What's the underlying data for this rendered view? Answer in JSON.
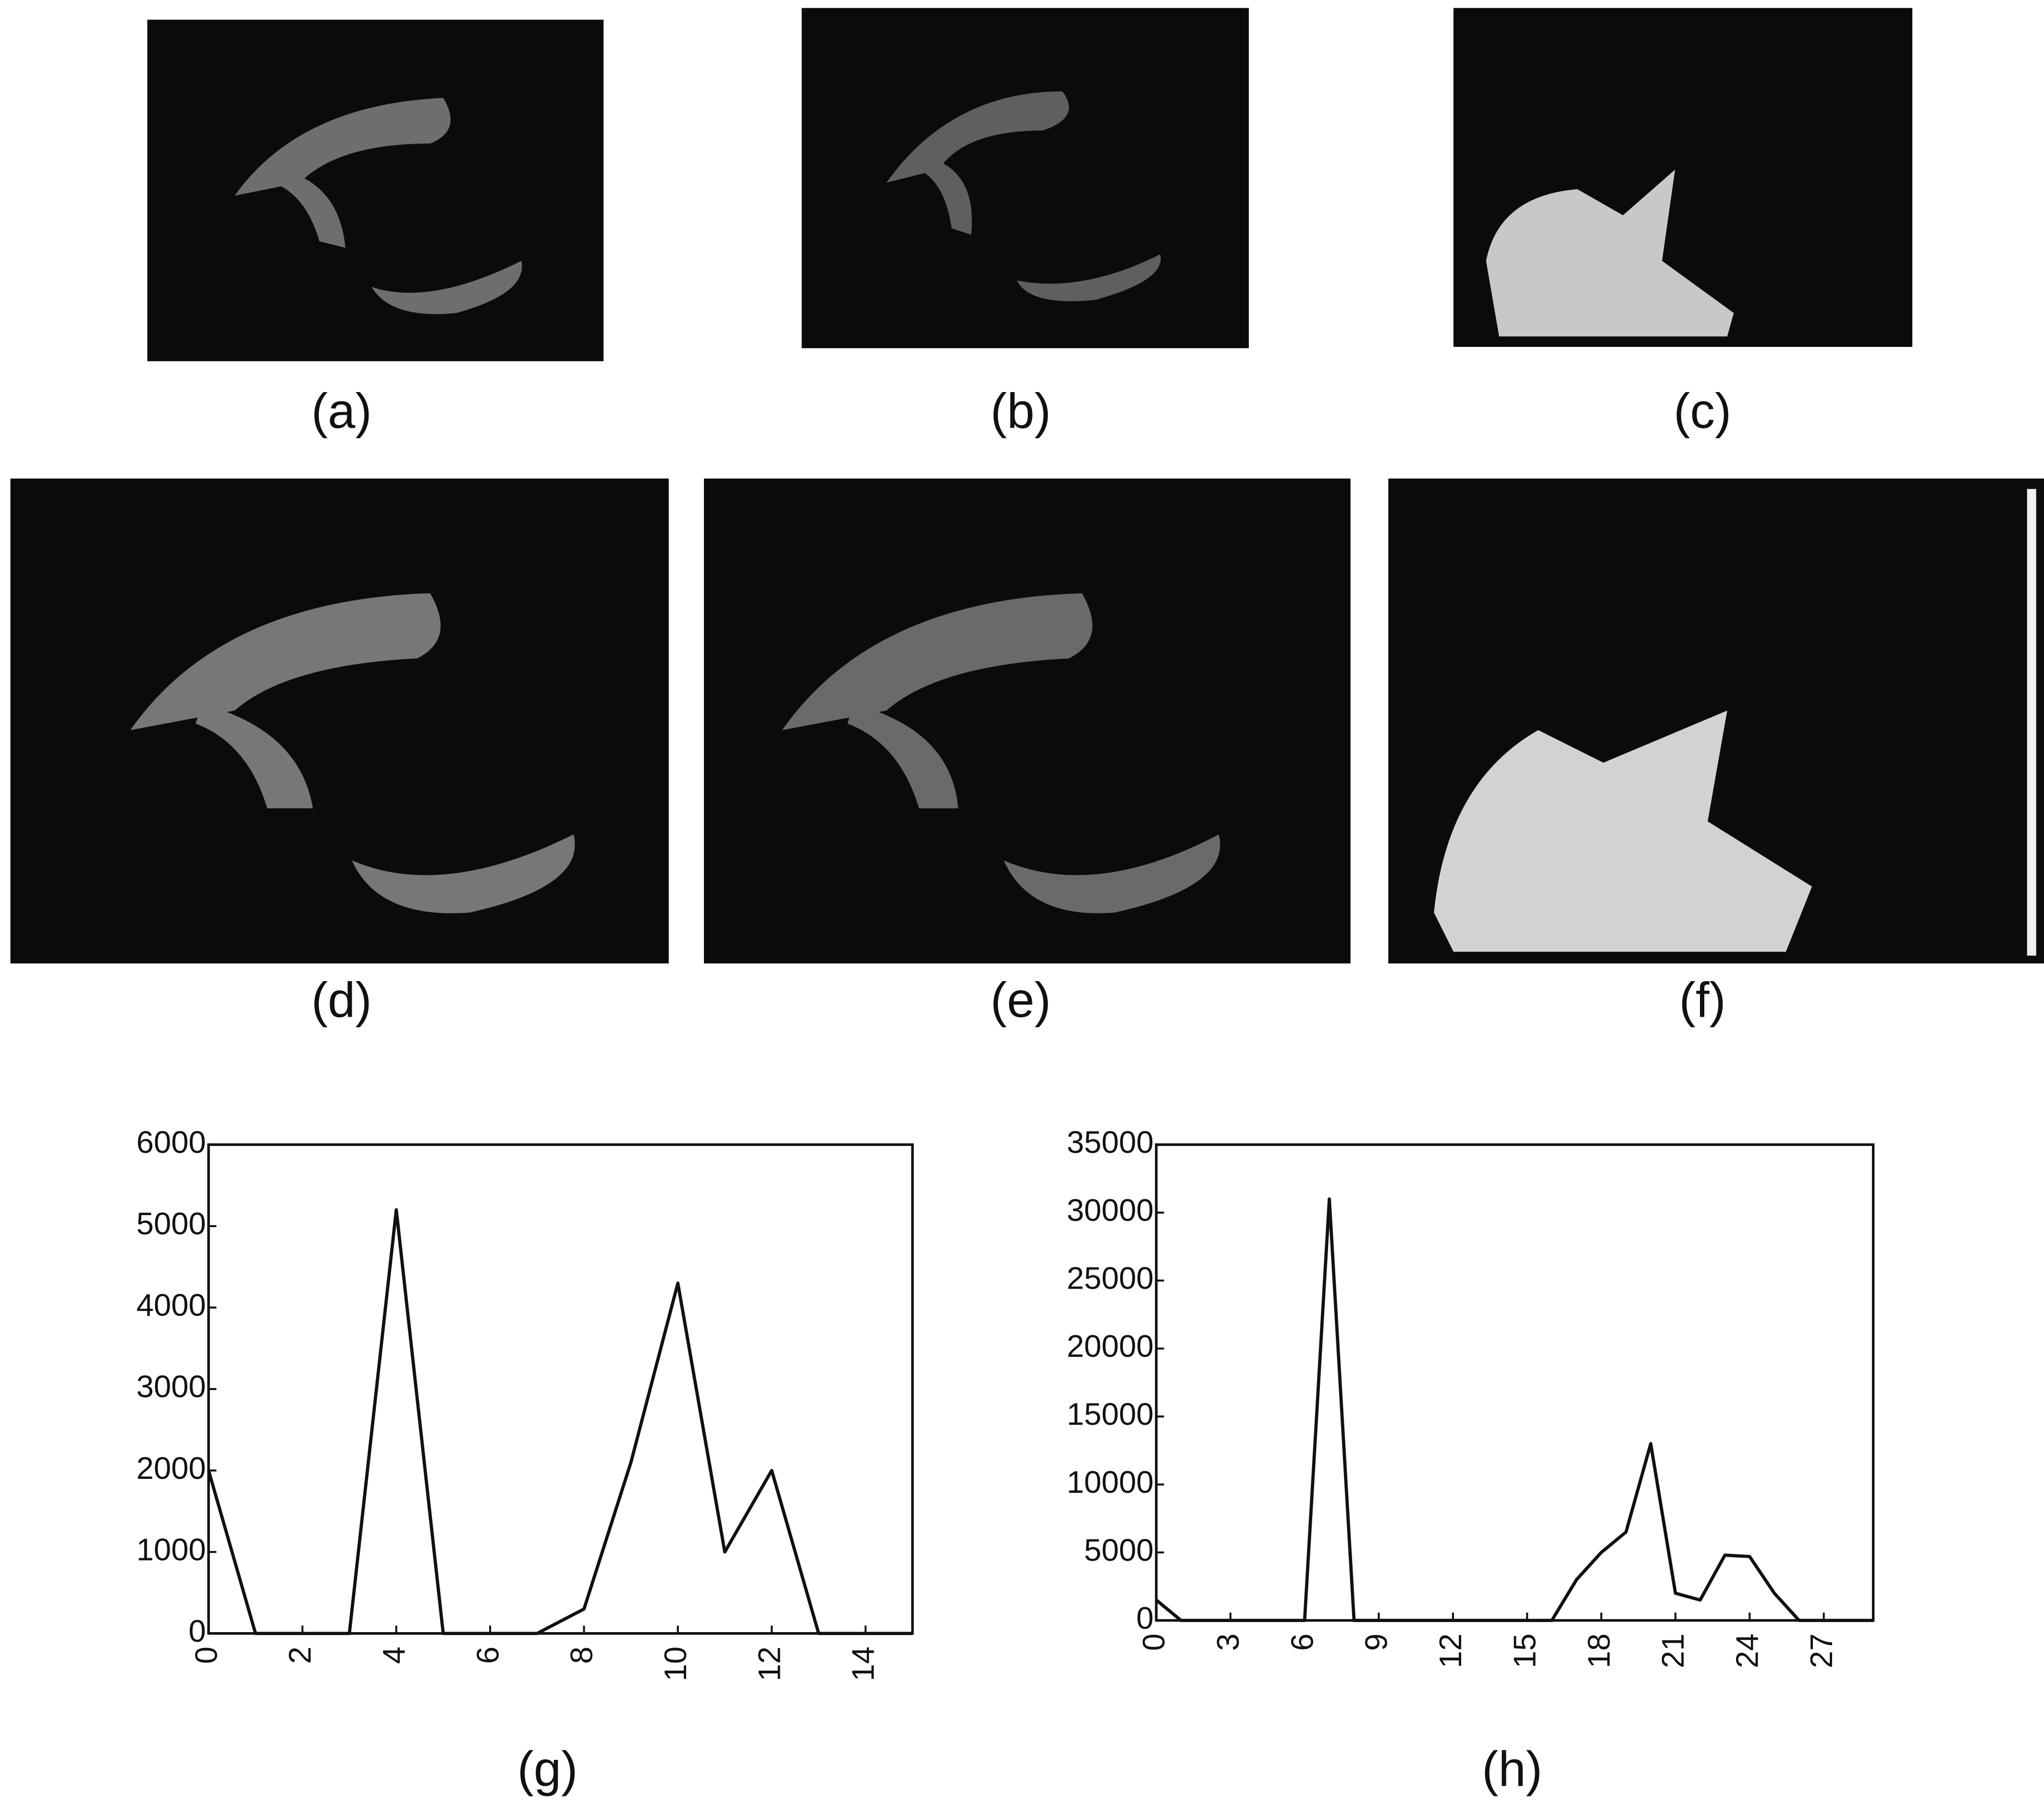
{
  "panels": [
    {
      "label": "(a)"
    },
    {
      "label": "(b)"
    },
    {
      "label": "(c)"
    },
    {
      "label": "(d)"
    },
    {
      "label": "(e)"
    },
    {
      "label": "(f)"
    }
  ],
  "chart_data": [
    {
      "type": "line",
      "caption": "(g)",
      "x": [
        0,
        1,
        2,
        3,
        4,
        5,
        6,
        7,
        8,
        9,
        10,
        11,
        12,
        13,
        14,
        15
      ],
      "values": [
        2000,
        0,
        0,
        0,
        5200,
        0,
        0,
        0,
        300,
        2100,
        4300,
        1000,
        2000,
        0,
        0,
        0
      ],
      "color": "#111111",
      "xlim": [
        0,
        15
      ],
      "xticks": [
        0,
        2,
        4,
        6,
        8,
        10,
        12,
        14
      ],
      "ylim": [
        0,
        6000
      ],
      "yticks": [
        0,
        1000,
        2000,
        3000,
        4000,
        5000,
        6000
      ]
    },
    {
      "type": "line",
      "caption": "(h)",
      "x": [
        0,
        1,
        2,
        3,
        4,
        5,
        6,
        7,
        8,
        9,
        10,
        11,
        12,
        13,
        14,
        15,
        16,
        17,
        18,
        19,
        20,
        21,
        22,
        23,
        24,
        25,
        26,
        27,
        28,
        29
      ],
      "values": [
        1500,
        0,
        0,
        0,
        0,
        0,
        0,
        31000,
        0,
        0,
        0,
        0,
        0,
        0,
        0,
        0,
        0,
        3000,
        5000,
        6500,
        13000,
        2000,
        1500,
        4800,
        4700,
        2000,
        0,
        0,
        0,
        0
      ],
      "color": "#111111",
      "xlim": [
        0,
        29
      ],
      "xticks": [
        0,
        3,
        6,
        9,
        12,
        15,
        18,
        21,
        24,
        27
      ],
      "ylim": [
        0,
        35000
      ],
      "yticks": [
        0,
        5000,
        10000,
        15000,
        20000,
        25000,
        30000,
        35000
      ]
    }
  ]
}
